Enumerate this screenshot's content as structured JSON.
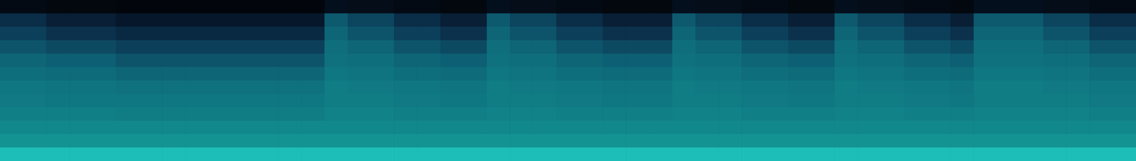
{
  "chart_data": {
    "type": "heatmap",
    "tick_labels": false,
    "zlim": [
      0,
      100
    ],
    "z": [
      [
        8,
        8,
        6,
        6,
        6,
        5,
        5,
        5,
        5,
        5,
        5,
        5,
        5,
        5,
        12,
        10,
        10,
        8,
        8,
        6,
        6,
        12,
        10,
        10,
        8,
        8,
        6,
        6,
        6,
        12,
        10,
        10,
        8,
        8,
        6,
        6,
        12,
        10,
        10,
        8,
        8,
        6,
        12,
        12,
        12,
        10,
        10,
        8,
        8
      ],
      [
        30,
        30,
        22,
        22,
        22,
        18,
        18,
        18,
        18,
        18,
        18,
        18,
        18,
        18,
        48,
        40,
        40,
        30,
        30,
        22,
        22,
        48,
        40,
        40,
        30,
        30,
        22,
        22,
        22,
        48,
        40,
        40,
        30,
        30,
        22,
        22,
        48,
        40,
        40,
        30,
        30,
        22,
        48,
        48,
        48,
        40,
        40,
        30,
        30
      ],
      [
        38,
        38,
        32,
        32,
        32,
        28,
        28,
        28,
        28,
        28,
        28,
        28,
        28,
        28,
        52,
        46,
        46,
        38,
        38,
        32,
        32,
        52,
        46,
        46,
        38,
        38,
        32,
        32,
        32,
        52,
        46,
        46,
        38,
        38,
        32,
        32,
        52,
        46,
        46,
        38,
        38,
        32,
        52,
        52,
        52,
        46,
        46,
        38,
        38
      ],
      [
        46,
        46,
        42,
        42,
        42,
        38,
        38,
        38,
        38,
        38,
        38,
        38,
        38,
        38,
        55,
        52,
        52,
        46,
        46,
        42,
        42,
        55,
        52,
        52,
        46,
        46,
        42,
        42,
        42,
        55,
        52,
        52,
        46,
        46,
        42,
        42,
        55,
        52,
        52,
        46,
        46,
        42,
        55,
        55,
        55,
        52,
        52,
        46,
        46
      ],
      [
        52,
        52,
        50,
        50,
        50,
        46,
        46,
        46,
        46,
        46,
        46,
        46,
        46,
        46,
        56,
        55,
        55,
        52,
        52,
        50,
        50,
        56,
        55,
        55,
        52,
        52,
        50,
        50,
        50,
        56,
        55,
        55,
        52,
        52,
        50,
        50,
        56,
        55,
        55,
        52,
        52,
        50,
        56,
        56,
        56,
        55,
        55,
        52,
        52
      ],
      [
        55,
        55,
        54,
        54,
        54,
        52,
        52,
        52,
        52,
        52,
        52,
        52,
        52,
        52,
        58,
        57,
        57,
        55,
        55,
        54,
        54,
        58,
        57,
        57,
        55,
        55,
        54,
        54,
        54,
        58,
        57,
        57,
        55,
        55,
        54,
        54,
        58,
        57,
        57,
        55,
        55,
        54,
        58,
        58,
        58,
        57,
        57,
        55,
        55
      ],
      [
        58,
        58,
        57,
        57,
        57,
        56,
        56,
        56,
        56,
        56,
        56,
        56,
        56,
        56,
        60,
        59,
        59,
        58,
        58,
        57,
        57,
        60,
        59,
        59,
        58,
        58,
        57,
        57,
        57,
        60,
        59,
        59,
        58,
        58,
        57,
        57,
        60,
        59,
        59,
        58,
        58,
        57,
        60,
        60,
        60,
        59,
        59,
        58,
        58
      ],
      [
        59,
        59,
        58,
        58,
        58,
        58,
        58,
        58,
        58,
        58,
        58,
        58,
        58,
        58,
        60,
        60,
        60,
        59,
        59,
        58,
        58,
        60,
        60,
        60,
        59,
        59,
        58,
        58,
        58,
        60,
        60,
        60,
        59,
        59,
        58,
        58,
        60,
        60,
        60,
        59,
        59,
        58,
        60,
        60,
        60,
        60,
        60,
        59,
        59
      ],
      [
        61,
        61,
        61,
        61,
        61,
        60,
        60,
        60,
        60,
        60,
        60,
        60,
        60,
        60,
        62,
        62,
        62,
        61,
        61,
        61,
        61,
        62,
        62,
        62,
        61,
        61,
        61,
        61,
        61,
        62,
        62,
        62,
        61,
        61,
        61,
        61,
        62,
        62,
        62,
        61,
        61,
        61,
        62,
        62,
        62,
        62,
        62,
        61,
        61
      ],
      [
        64,
        64,
        64,
        64,
        64,
        64,
        64,
        64,
        64,
        64,
        64,
        64,
        64,
        64,
        64,
        64,
        64,
        64,
        64,
        64,
        64,
        64,
        64,
        64,
        64,
        64,
        64,
        64,
        64,
        64,
        64,
        64,
        64,
        64,
        64,
        64,
        64,
        64,
        64,
        64,
        64,
        64,
        64,
        64,
        64,
        64,
        64,
        64,
        64
      ],
      [
        68,
        68,
        68,
        68,
        68,
        68,
        68,
        68,
        68,
        68,
        68,
        68,
        68,
        68,
        68,
        68,
        68,
        68,
        68,
        68,
        68,
        68,
        68,
        68,
        68,
        68,
        68,
        68,
        68,
        68,
        68,
        68,
        68,
        68,
        68,
        68,
        68,
        68,
        68,
        68,
        68,
        68,
        68,
        68,
        68,
        68,
        68,
        68,
        68
      ],
      [
        82,
        82,
        82,
        82,
        82,
        82,
        82,
        82,
        82,
        82,
        82,
        82,
        82,
        82,
        82,
        82,
        82,
        82,
        82,
        82,
        82,
        82,
        82,
        82,
        82,
        82,
        82,
        82,
        82,
        82,
        82,
        82,
        82,
        82,
        82,
        82,
        82,
        82,
        82,
        82,
        82,
        82,
        82,
        82,
        82,
        82,
        82,
        82,
        82
      ]
    ]
  }
}
